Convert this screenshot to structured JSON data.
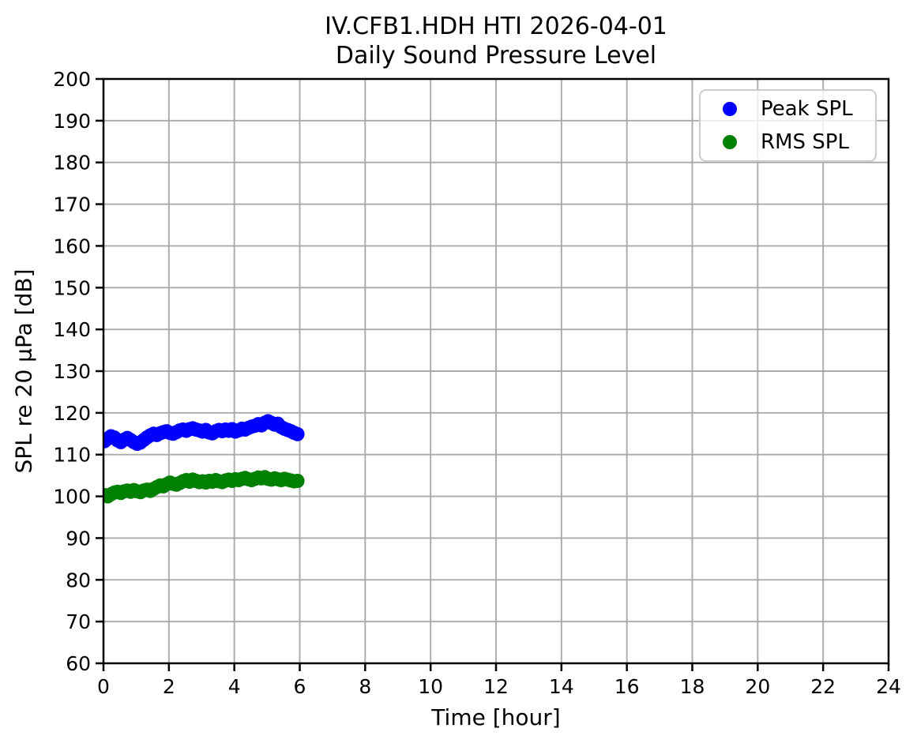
{
  "figure": {
    "title_line1": "IV.CFB1.HDH HTI 2026-04-01",
    "title_line2": "Daily Sound Pressure Level"
  },
  "legend": {
    "entries": [
      {
        "label": "Peak SPL",
        "color": "#0000ff"
      },
      {
        "label": "RMS SPL",
        "color": "#008000"
      }
    ]
  },
  "colors": {
    "background": "#ffffff",
    "grid": "#aaaaaa",
    "spine": "#000000",
    "tick_label": "#000000",
    "peak_spl": "#0000ff",
    "rms_spl": "#008000"
  },
  "chart_data": {
    "type": "scatter",
    "title": "IV.CFB1.HDH HTI 2026-04-01\nDaily Sound Pressure Level",
    "xlabel": "Time [hour]",
    "ylabel": "SPL re 20 µPa [dB]",
    "xlim": [
      0,
      24
    ],
    "ylim": [
      60,
      200
    ],
    "x_ticks": [
      0,
      2,
      4,
      6,
      8,
      10,
      12,
      14,
      16,
      18,
      20,
      22,
      24
    ],
    "y_ticks": [
      60,
      70,
      80,
      90,
      100,
      110,
      120,
      130,
      140,
      150,
      160,
      170,
      180,
      190,
      200
    ],
    "grid": true,
    "legend_position": "upper right",
    "marker_size_px": 9,
    "x": [
      0.03,
      0.13,
      0.23,
      0.33,
      0.43,
      0.53,
      0.63,
      0.73,
      0.83,
      0.93,
      1.03,
      1.13,
      1.23,
      1.33,
      1.43,
      1.53,
      1.63,
      1.73,
      1.83,
      1.93,
      2.03,
      2.13,
      2.23,
      2.33,
      2.43,
      2.53,
      2.63,
      2.73,
      2.83,
      2.93,
      3.03,
      3.13,
      3.23,
      3.33,
      3.43,
      3.53,
      3.63,
      3.73,
      3.83,
      3.93,
      4.03,
      4.13,
      4.23,
      4.33,
      4.43,
      4.53,
      4.63,
      4.73,
      4.83,
      4.93,
      5.03,
      5.13,
      5.23,
      5.33,
      5.43,
      5.53,
      5.63,
      5.73,
      5.83,
      5.93
    ],
    "series": [
      {
        "name": "Peak SPL",
        "color": "#0000ff",
        "y": [
          113.2,
          113.8,
          114.4,
          114.1,
          113.4,
          113.0,
          113.6,
          114.0,
          113.5,
          113.0,
          112.6,
          112.9,
          113.5,
          114.1,
          114.6,
          115.0,
          114.7,
          115.1,
          115.4,
          115.6,
          115.2,
          115.0,
          115.4,
          115.8,
          116.0,
          115.7,
          116.1,
          116.3,
          116.0,
          115.8,
          115.5,
          115.9,
          115.3,
          115.1,
          115.6,
          115.9,
          115.6,
          116.0,
          115.7,
          116.1,
          115.5,
          115.8,
          116.2,
          116.0,
          116.4,
          116.7,
          116.9,
          117.3,
          117.0,
          117.6,
          118.0,
          117.6,
          117.2,
          117.4,
          116.6,
          116.2,
          115.9,
          115.6,
          115.2,
          114.9
        ]
      },
      {
        "name": "RMS SPL",
        "color": "#008000",
        "y": [
          100.3,
          100.0,
          100.5,
          100.9,
          101.1,
          100.8,
          101.2,
          101.4,
          101.1,
          101.5,
          101.2,
          101.0,
          101.4,
          101.6,
          101.3,
          101.8,
          102.2,
          102.6,
          102.4,
          102.9,
          103.3,
          103.0,
          102.8,
          103.2,
          103.6,
          103.9,
          103.5,
          104.0,
          103.7,
          103.4,
          103.6,
          103.3,
          103.7,
          103.5,
          103.9,
          103.6,
          103.4,
          103.8,
          104.0,
          103.7,
          104.1,
          103.9,
          104.2,
          104.4,
          104.1,
          103.9,
          104.2,
          104.5,
          104.3,
          104.6,
          104.2,
          104.0,
          104.3,
          104.1,
          103.9,
          104.2,
          104.0,
          103.8,
          103.6,
          103.7
        ]
      }
    ]
  }
}
